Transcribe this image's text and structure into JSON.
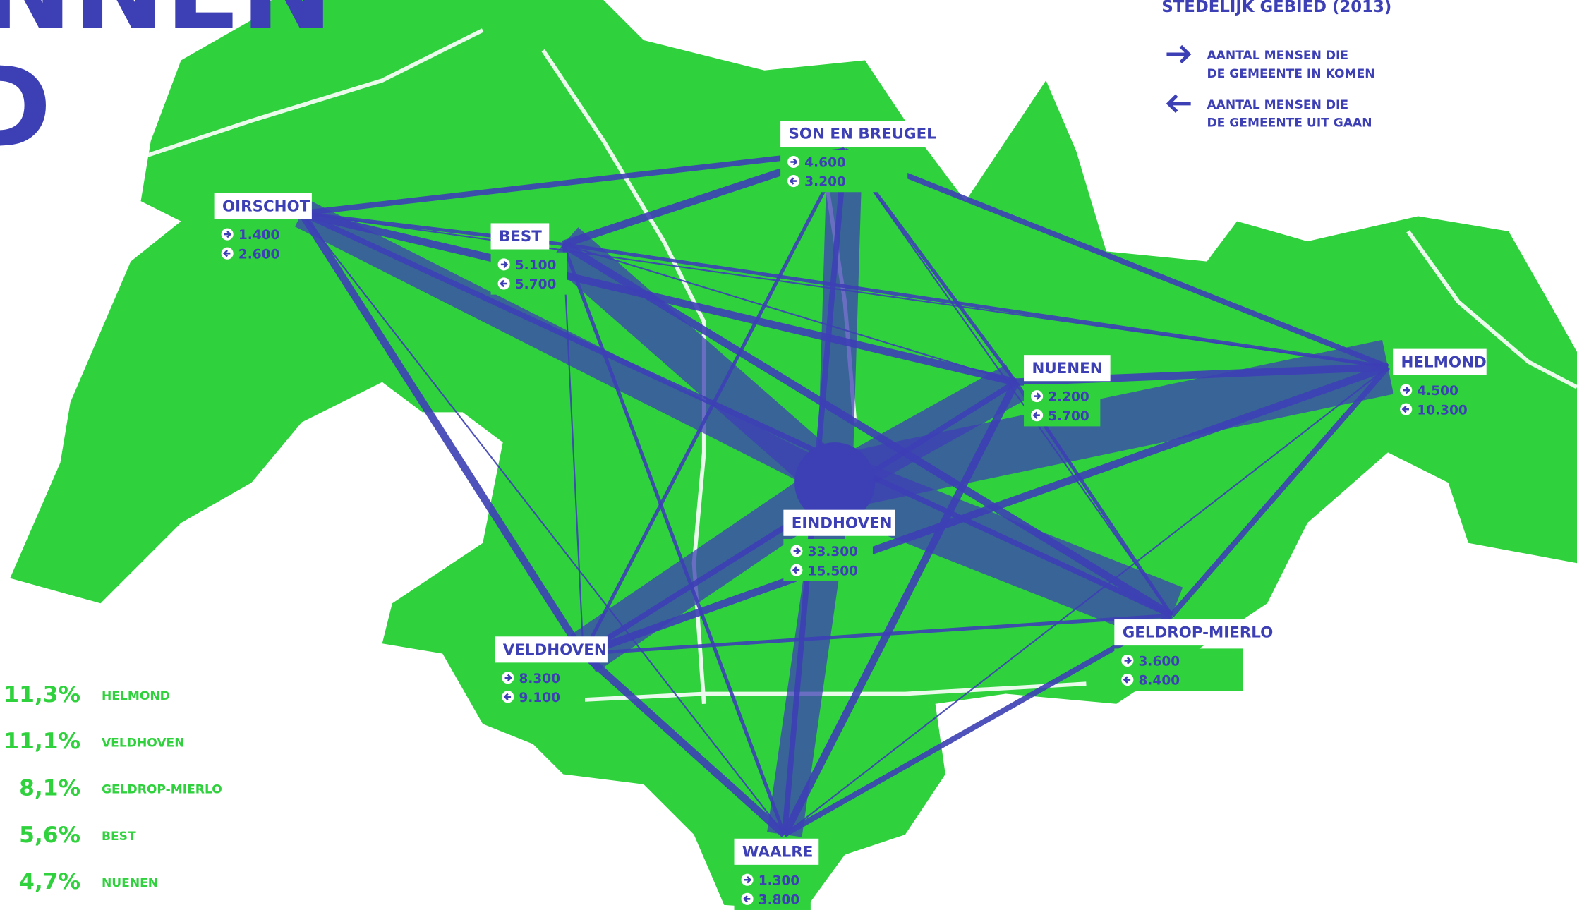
{
  "title_lines": [
    "NNEN",
    "D"
  ],
  "legend": {
    "heading": "STEDELIJK GEBIED (2013)",
    "items": [
      {
        "lines": [
          "AANTAL MENSEN DIE",
          "DE GEMEENTE IN KOMEN"
        ]
      },
      {
        "lines": [
          "AANTAL MENSEN DIE",
          "DE GEMEENTE  UIT GAAN"
        ]
      }
    ]
  },
  "nodes": [
    {
      "name": "OIRSCHOT",
      "in": "1.400",
      "out": "2.600"
    },
    {
      "name": "BEST",
      "in": "5.100",
      "out": "5.700"
    },
    {
      "name": "SON EN BREUGEL",
      "in": "4.600",
      "out": "3.200"
    },
    {
      "name": "NUENEN",
      "in": "2.200",
      "out": "5.700"
    },
    {
      "name": "HELMOND",
      "in": "4.500",
      "out": "10.300"
    },
    {
      "name": "EINDHOVEN",
      "in": "33.300",
      "out": "15.500"
    },
    {
      "name": "GELDROP-MIERLO",
      "in": "3.600",
      "out": "8.400"
    },
    {
      "name": "VELDHOVEN",
      "in": "8.300",
      "out": "9.100"
    },
    {
      "name": "WAALRE",
      "in": "1.300",
      "out": "3.800"
    }
  ],
  "shares": [
    {
      "pct": "11,3%",
      "name": "HELMOND"
    },
    {
      "pct": "11,1%",
      "name": "VELDHOVEN"
    },
    {
      "pct": "8,1%",
      "name": "GELDROP-MIERLO"
    },
    {
      "pct": "5,6%",
      "name": "BEST"
    },
    {
      "pct": "4,7%",
      "name": "NUENEN"
    }
  ]
}
